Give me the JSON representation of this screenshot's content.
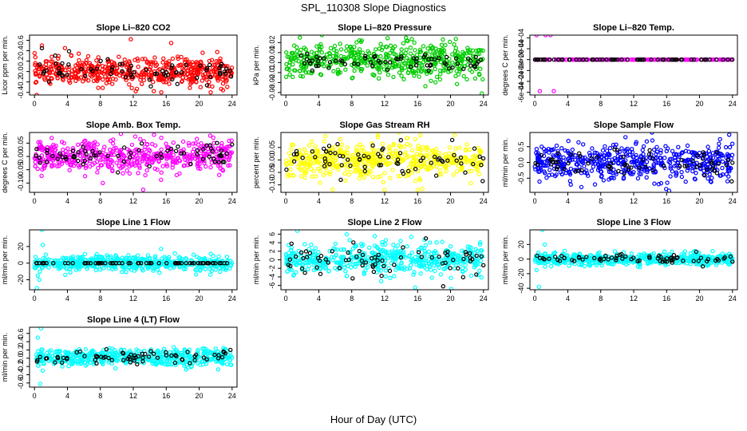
{
  "figure": {
    "title": "SPL_110308  Slope Diagnostics",
    "xlabel": "Hour of Day (UTC)"
  },
  "chart_data": [
    {
      "type": "scatter",
      "title": "Slope Li–820 CO2",
      "ylabel": "Licor ppm per min.",
      "xlim": [
        -0.6,
        24.6
      ],
      "ylim": [
        -0.45,
        0.7
      ],
      "xticks": [
        "0",
        "4",
        "8",
        "12",
        "16",
        "20",
        "24"
      ],
      "yticks": [
        "-0.4",
        "-0.2",
        "0.0",
        "0.2",
        "0.4",
        "0.6"
      ],
      "ytick_values": [
        -0.4,
        -0.2,
        0.0,
        0.2,
        0.4,
        0.6
      ],
      "series": [
        {
          "color": "#ff0000",
          "center": 0.0,
          "spread": 0.13,
          "n": 520,
          "outliers": [
            [
              11.7,
              0.62
            ],
            [
              16.6,
              0.55
            ],
            [
              12.3,
              -0.38
            ],
            [
              15.4,
              -0.4
            ],
            [
              21.4,
              -0.4
            ],
            [
              22.9,
              -0.36
            ],
            [
              0.9,
              0.5
            ],
            [
              3.7,
              0.45
            ]
          ]
        },
        {
          "color": "#000000",
          "center": 0.0,
          "spread": 0.1,
          "n": 70,
          "outliers": [
            [
              0.9,
              0.45
            ],
            [
              4.2,
              0.39
            ]
          ]
        }
      ]
    },
    {
      "type": "scatter",
      "title": "Slope Li–820 Pressure",
      "ylabel": "kPa per min.",
      "xlim": [
        -0.6,
        24.6
      ],
      "ylim": [
        -0.0325,
        0.0275
      ],
      "xticks": [
        "0",
        "4",
        "8",
        "12",
        "16",
        "20",
        "24"
      ],
      "yticks": [
        "-0.03",
        "-0.02",
        "-0.01",
        "0.00",
        "0.01",
        "0.02"
      ],
      "ytick_values": [
        -0.03,
        -0.02,
        -0.01,
        0.0,
        0.01,
        0.02
      ],
      "series": [
        {
          "color": "#00cc00",
          "center": 0.002,
          "spread": 0.009,
          "n": 520,
          "outliers": [
            [
              1.7,
              0.025
            ],
            [
              23.8,
              -0.031
            ],
            [
              15.6,
              0.02
            ]
          ]
        },
        {
          "color": "#000000",
          "center": 0.0,
          "spread": 0.004,
          "n": 70,
          "outliers": []
        }
      ]
    },
    {
      "type": "scatter",
      "title": "Slope Li–820 Temp.",
      "ylabel": "degrees C per min.",
      "xlim": [
        -0.6,
        24.6
      ],
      "ylim": [
        -0.00065,
        0.00045
      ],
      "xticks": [
        "0",
        "4",
        "8",
        "12",
        "16",
        "20",
        "24"
      ],
      "yticks": [
        "-6e-04",
        "-4e-04",
        "-2e-04",
        "0e+00",
        "2e-04",
        "4e-04"
      ],
      "ytick_values": [
        -0.0006,
        -0.0004,
        -0.0002,
        0.0,
        0.0002,
        0.0004
      ],
      "series": [
        {
          "color": "#ff00ff",
          "center": 0.0,
          "spread": 0.0,
          "n": 200,
          "outliers": [
            [
              0.2,
              0.00045
            ],
            [
              1.3,
              0.00045
            ],
            [
              1.9,
              0.00045
            ],
            [
              0.6,
              -0.00058
            ],
            [
              2.3,
              -0.00058
            ],
            [
              0.1,
              0.0
            ]
          ]
        },
        {
          "color": "#000000",
          "center": 0.0,
          "spread": 0.0,
          "n": 70,
          "outliers": []
        }
      ]
    },
    {
      "type": "scatter",
      "title": "Slope Amb. Box Temp.",
      "ylabel": "degrees C per min.",
      "xlim": [
        -0.6,
        24.6
      ],
      "ylim": [
        -0.135,
        0.09
      ],
      "xticks": [
        "0",
        "4",
        "8",
        "12",
        "16",
        "20",
        "24"
      ],
      "yticks": [
        "-0.10",
        "-0.05",
        "0.00",
        "0.05"
      ],
      "ytick_values": [
        -0.1,
        -0.05,
        0.0,
        0.05
      ],
      "series": [
        {
          "color": "#ff00ff",
          "center": 0.0,
          "spread": 0.03,
          "n": 520,
          "outliers": [
            [
              10.5,
              0.085
            ],
            [
              13.2,
              -0.125
            ],
            [
              8.3,
              -0.1
            ],
            [
              15.4,
              0.07
            ]
          ]
        },
        {
          "color": "#000000",
          "center": 0.0,
          "spread": 0.02,
          "n": 70,
          "outliers": [
            [
              24.0,
              0.045
            ]
          ]
        }
      ]
    },
    {
      "type": "scatter",
      "title": "Slope Gas Stream RH",
      "ylabel": "percent per min.",
      "xlim": [
        -0.6,
        24.6
      ],
      "ylim": [
        -0.13,
        0.11
      ],
      "xticks": [
        "0",
        "4",
        "8",
        "12",
        "16",
        "20",
        "24"
      ],
      "yticks": [
        "-0.10",
        "-0.05",
        "0.00",
        "0.05"
      ],
      "ytick_values": [
        -0.1,
        -0.05,
        0.0,
        0.05
      ],
      "series": [
        {
          "color": "#ffff00",
          "center": 0.0,
          "spread": 0.035,
          "n": 520,
          "outliers": [
            [
              11.2,
              0.1
            ],
            [
              20.5,
              0.1
            ],
            [
              12.0,
              -0.12
            ],
            [
              16.0,
              -0.12
            ]
          ]
        },
        {
          "color": "#000000",
          "center": 0.0,
          "spread": 0.03,
          "n": 70,
          "outliers": [
            [
              23.9,
              -0.085
            ],
            [
              20.2,
              0.08
            ]
          ]
        }
      ]
    },
    {
      "type": "scatter",
      "title": "Slope Sample Flow",
      "ylabel": "ml/min per min.",
      "xlim": [
        -0.6,
        24.6
      ],
      "ylim": [
        -0.95,
        0.95
      ],
      "xticks": [
        "0",
        "4",
        "8",
        "12",
        "16",
        "20",
        "24"
      ],
      "yticks": [
        "-0.5",
        "0.0",
        "0.5"
      ],
      "ytick_values": [
        -0.5,
        0.0,
        0.5
      ],
      "series": [
        {
          "color": "#0000ff",
          "center": 0.0,
          "spread": 0.28,
          "n": 520,
          "outliers": [
            [
              16.3,
              -0.9
            ],
            [
              23.6,
              0.88
            ],
            [
              11.0,
              0.8
            ],
            [
              7.3,
              -0.7
            ]
          ]
        },
        {
          "color": "#000000",
          "center": -0.05,
          "spread": 0.2,
          "n": 70,
          "outliers": [
            [
              23.9,
              -0.6
            ]
          ]
        }
      ]
    },
    {
      "type": "scatter",
      "title": "Slope Line 1 Flow",
      "ylabel": "ml/min per min.",
      "xlim": [
        -0.6,
        24.6
      ],
      "ylim": [
        -32,
        40
      ],
      "xticks": [
        "0",
        "4",
        "8",
        "12",
        "16",
        "20",
        "24"
      ],
      "yticks": [
        "-20",
        "0",
        "20"
      ],
      "ytick_values": [
        -20,
        0,
        20
      ],
      "series": [
        {
          "color": "#00ffff",
          "center": 0.0,
          "spread": 4.5,
          "n": 520,
          "outliers": [
            [
              0.3,
              -30
            ],
            [
              0.6,
              -20
            ],
            [
              0.9,
              40
            ],
            [
              1.0,
              22
            ],
            [
              0.4,
              -15
            ]
          ]
        },
        {
          "color": "#000000",
          "center": 0.0,
          "spread": 0.0,
          "n": 70,
          "outliers": []
        }
      ]
    },
    {
      "type": "scatter",
      "title": "Slope Line 2 Flow",
      "ylabel": "ml/min per min.",
      "xlim": [
        -0.6,
        24.6
      ],
      "ylim": [
        -7,
        7
      ],
      "xticks": [
        "0",
        "4",
        "8",
        "12",
        "16",
        "20",
        "24"
      ],
      "yticks": [
        "-6",
        "-4",
        "-2",
        "0",
        "2",
        "4",
        "6"
      ],
      "ytick_values": [
        -6,
        -4,
        -2,
        0,
        2,
        4,
        6
      ],
      "series": [
        {
          "color": "#00ffff",
          "center": 0.0,
          "spread": 1.8,
          "n": 520,
          "outliers": [
            [
              1.4,
              6.8
            ],
            [
              15.7,
              -6.5
            ],
            [
              20.1,
              -6.8
            ],
            [
              10.8,
              5.5
            ]
          ]
        },
        {
          "color": "#000000",
          "center": 0.0,
          "spread": 1.6,
          "n": 70,
          "outliers": [
            [
              17.0,
              5.0
            ],
            [
              19.1,
              -6.2
            ],
            [
              4.2,
              -3.3
            ]
          ]
        }
      ]
    },
    {
      "type": "scatter",
      "title": "Slope Line 3 Flow",
      "ylabel": "ml/min per min.",
      "xlim": [
        -0.6,
        24.6
      ],
      "ylim": [
        -42,
        40
      ],
      "xticks": [
        "0",
        "4",
        "8",
        "12",
        "16",
        "20",
        "24"
      ],
      "yticks": [
        "-40",
        "-20",
        "0",
        "20"
      ],
      "ytick_values": [
        -40,
        -20,
        0,
        20
      ],
      "series": [
        {
          "color": "#00ffff",
          "center": 0.0,
          "spread": 4.0,
          "n": 520,
          "outliers": [
            [
              0.5,
              -38
            ],
            [
              0.9,
              40
            ],
            [
              0.2,
              -15
            ],
            [
              1.2,
              20
            ]
          ]
        },
        {
          "color": "#000000",
          "center": 0.0,
          "spread": 3.0,
          "n": 70,
          "outliers": [
            [
              20.4,
              -10
            ],
            [
              19.6,
              10
            ]
          ]
        }
      ]
    },
    {
      "type": "scatter",
      "title": "Slope Line 4 (LT) Flow",
      "ylabel": "ml/min per min.",
      "xlim": [
        -0.6,
        24.6
      ],
      "ylim": [
        -0.7,
        0.75
      ],
      "xticks": [
        "0",
        "4",
        "8",
        "12",
        "16",
        "20",
        "24"
      ],
      "yticks": [
        "-0.6",
        "-0.4",
        "-0.2",
        "0.0",
        "0.2",
        "0.4",
        "0.6"
      ],
      "ytick_values": [
        -0.6,
        -0.4,
        -0.2,
        0.0,
        0.2,
        0.4,
        0.6
      ],
      "series": [
        {
          "color": "#00ffff",
          "center": 0.02,
          "spread": 0.1,
          "n": 520,
          "outliers": [
            [
              0.8,
              0.72
            ],
            [
              0.7,
              -0.62
            ],
            [
              0.4,
              0.5
            ],
            [
              1.0,
              -0.3
            ]
          ]
        },
        {
          "color": "#000000",
          "center": 0.02,
          "spread": 0.07,
          "n": 70,
          "outliers": [
            [
              23.8,
              0.2
            ]
          ]
        }
      ]
    }
  ]
}
